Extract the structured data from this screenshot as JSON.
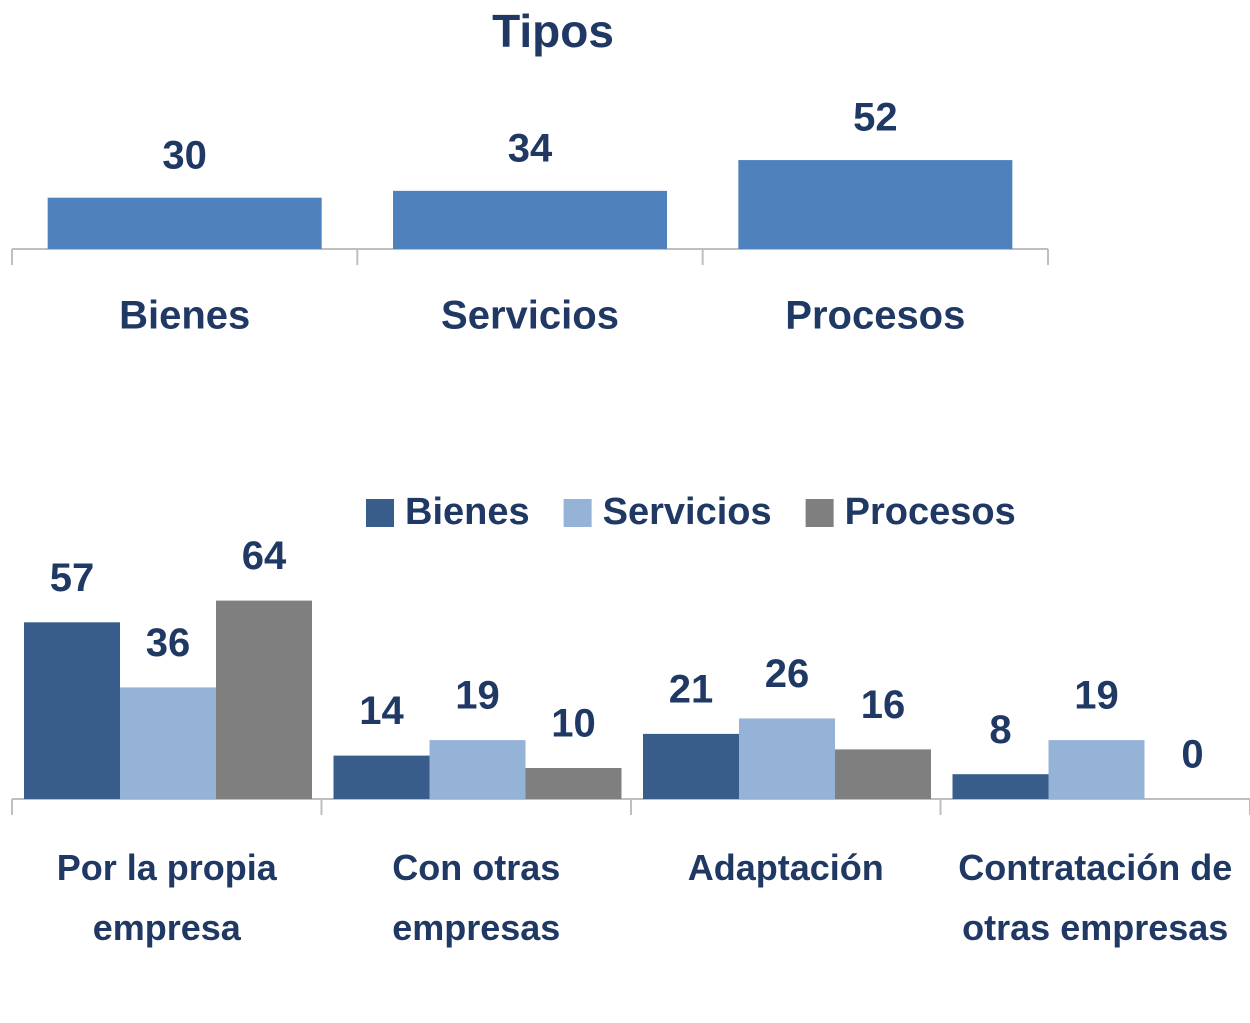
{
  "chart_data": [
    {
      "type": "bar",
      "title": "Tipos",
      "categories": [
        "Bienes",
        "Servicios",
        "Procesos"
      ],
      "values": [
        30,
        34,
        52
      ],
      "color": "#4f81bd"
    },
    {
      "type": "grouped_bar",
      "categories": [
        "Por la propia empresa",
        "Con otras empresas",
        "Adaptación",
        "Contratación de otras empresas"
      ],
      "series": [
        {
          "name": "Bienes",
          "color": "#385d8a",
          "values": [
            57,
            14,
            21,
            8
          ]
        },
        {
          "name": "Servicios",
          "color": "#95b3d7",
          "values": [
            36,
            19,
            26,
            19
          ]
        },
        {
          "name": "Procesos",
          "color": "#7f7f7f",
          "values": [
            64,
            10,
            16,
            0
          ]
        }
      ],
      "legend": "top"
    }
  ]
}
